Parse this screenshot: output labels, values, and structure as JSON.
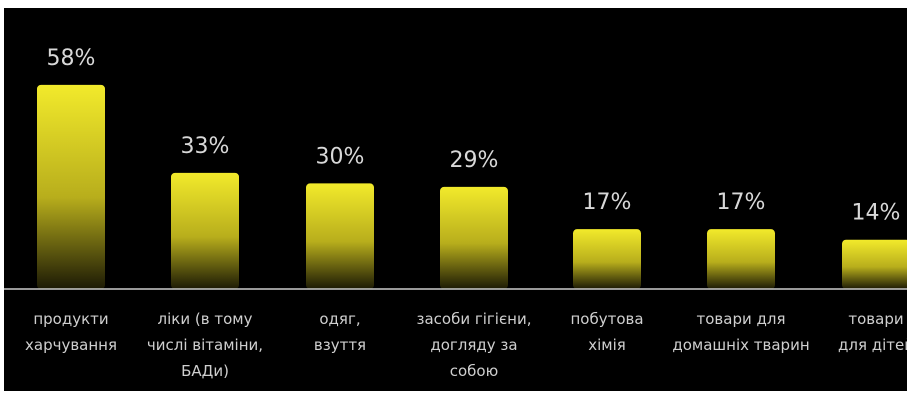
{
  "chart_data": {
    "type": "bar",
    "categories": [
      [
        "продукти",
        "харчування"
      ],
      [
        "ліки (в тому",
        "числі вітаміни,",
        "БАДи)"
      ],
      [
        "одяг,",
        "взуття"
      ],
      [
        "засоби гігієни,",
        "догляду за",
        "собою"
      ],
      [
        "побутова",
        "хімія"
      ],
      [
        "товари для",
        "домашніх тварин"
      ],
      [
        "товари",
        "для дітей"
      ]
    ],
    "values": [
      58,
      33,
      30,
      29,
      17,
      17,
      14
    ],
    "value_labels": [
      "58%",
      "33%",
      "30%",
      "29%",
      "17%",
      "17%",
      "14%"
    ],
    "title": "",
    "xlabel": "",
    "ylabel": "",
    "ylim": [
      0,
      62
    ],
    "grid": false,
    "legend": "none",
    "colors": {
      "background": "#000000",
      "bar_top": "#f2ea2b",
      "bar_bottom": "#1c1a05",
      "axis": "#cccccc",
      "value_text": "#d8d8d8",
      "category_text": "#cfcfcf"
    }
  }
}
